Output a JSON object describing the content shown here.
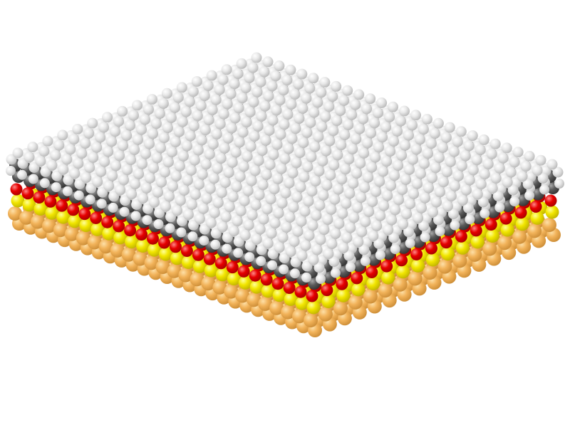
{
  "scene": {
    "subject": "molecular-model",
    "background_color": "#ffffff",
    "layers": [
      {
        "name": "gold-substrate",
        "color": "#f2b35a",
        "highlight": "#fde0a8",
        "shade": "#c98a34"
      },
      {
        "name": "sulfur-anchor",
        "color": "#f2e600",
        "highlight": "#ffff9a",
        "shade": "#bdb000"
      },
      {
        "name": "oxygen-linker",
        "color": "#e60000",
        "highlight": "#ff8a8a",
        "shade": "#a30000"
      },
      {
        "name": "carbon-backbone",
        "color": "#5a5a5a",
        "highlight": "#a8a8a8",
        "shade": "#303030"
      },
      {
        "name": "hydrogen-surface",
        "color": "#e8e8e8",
        "highlight": "#ffffff",
        "shade": "#b4b4b4"
      }
    ]
  }
}
